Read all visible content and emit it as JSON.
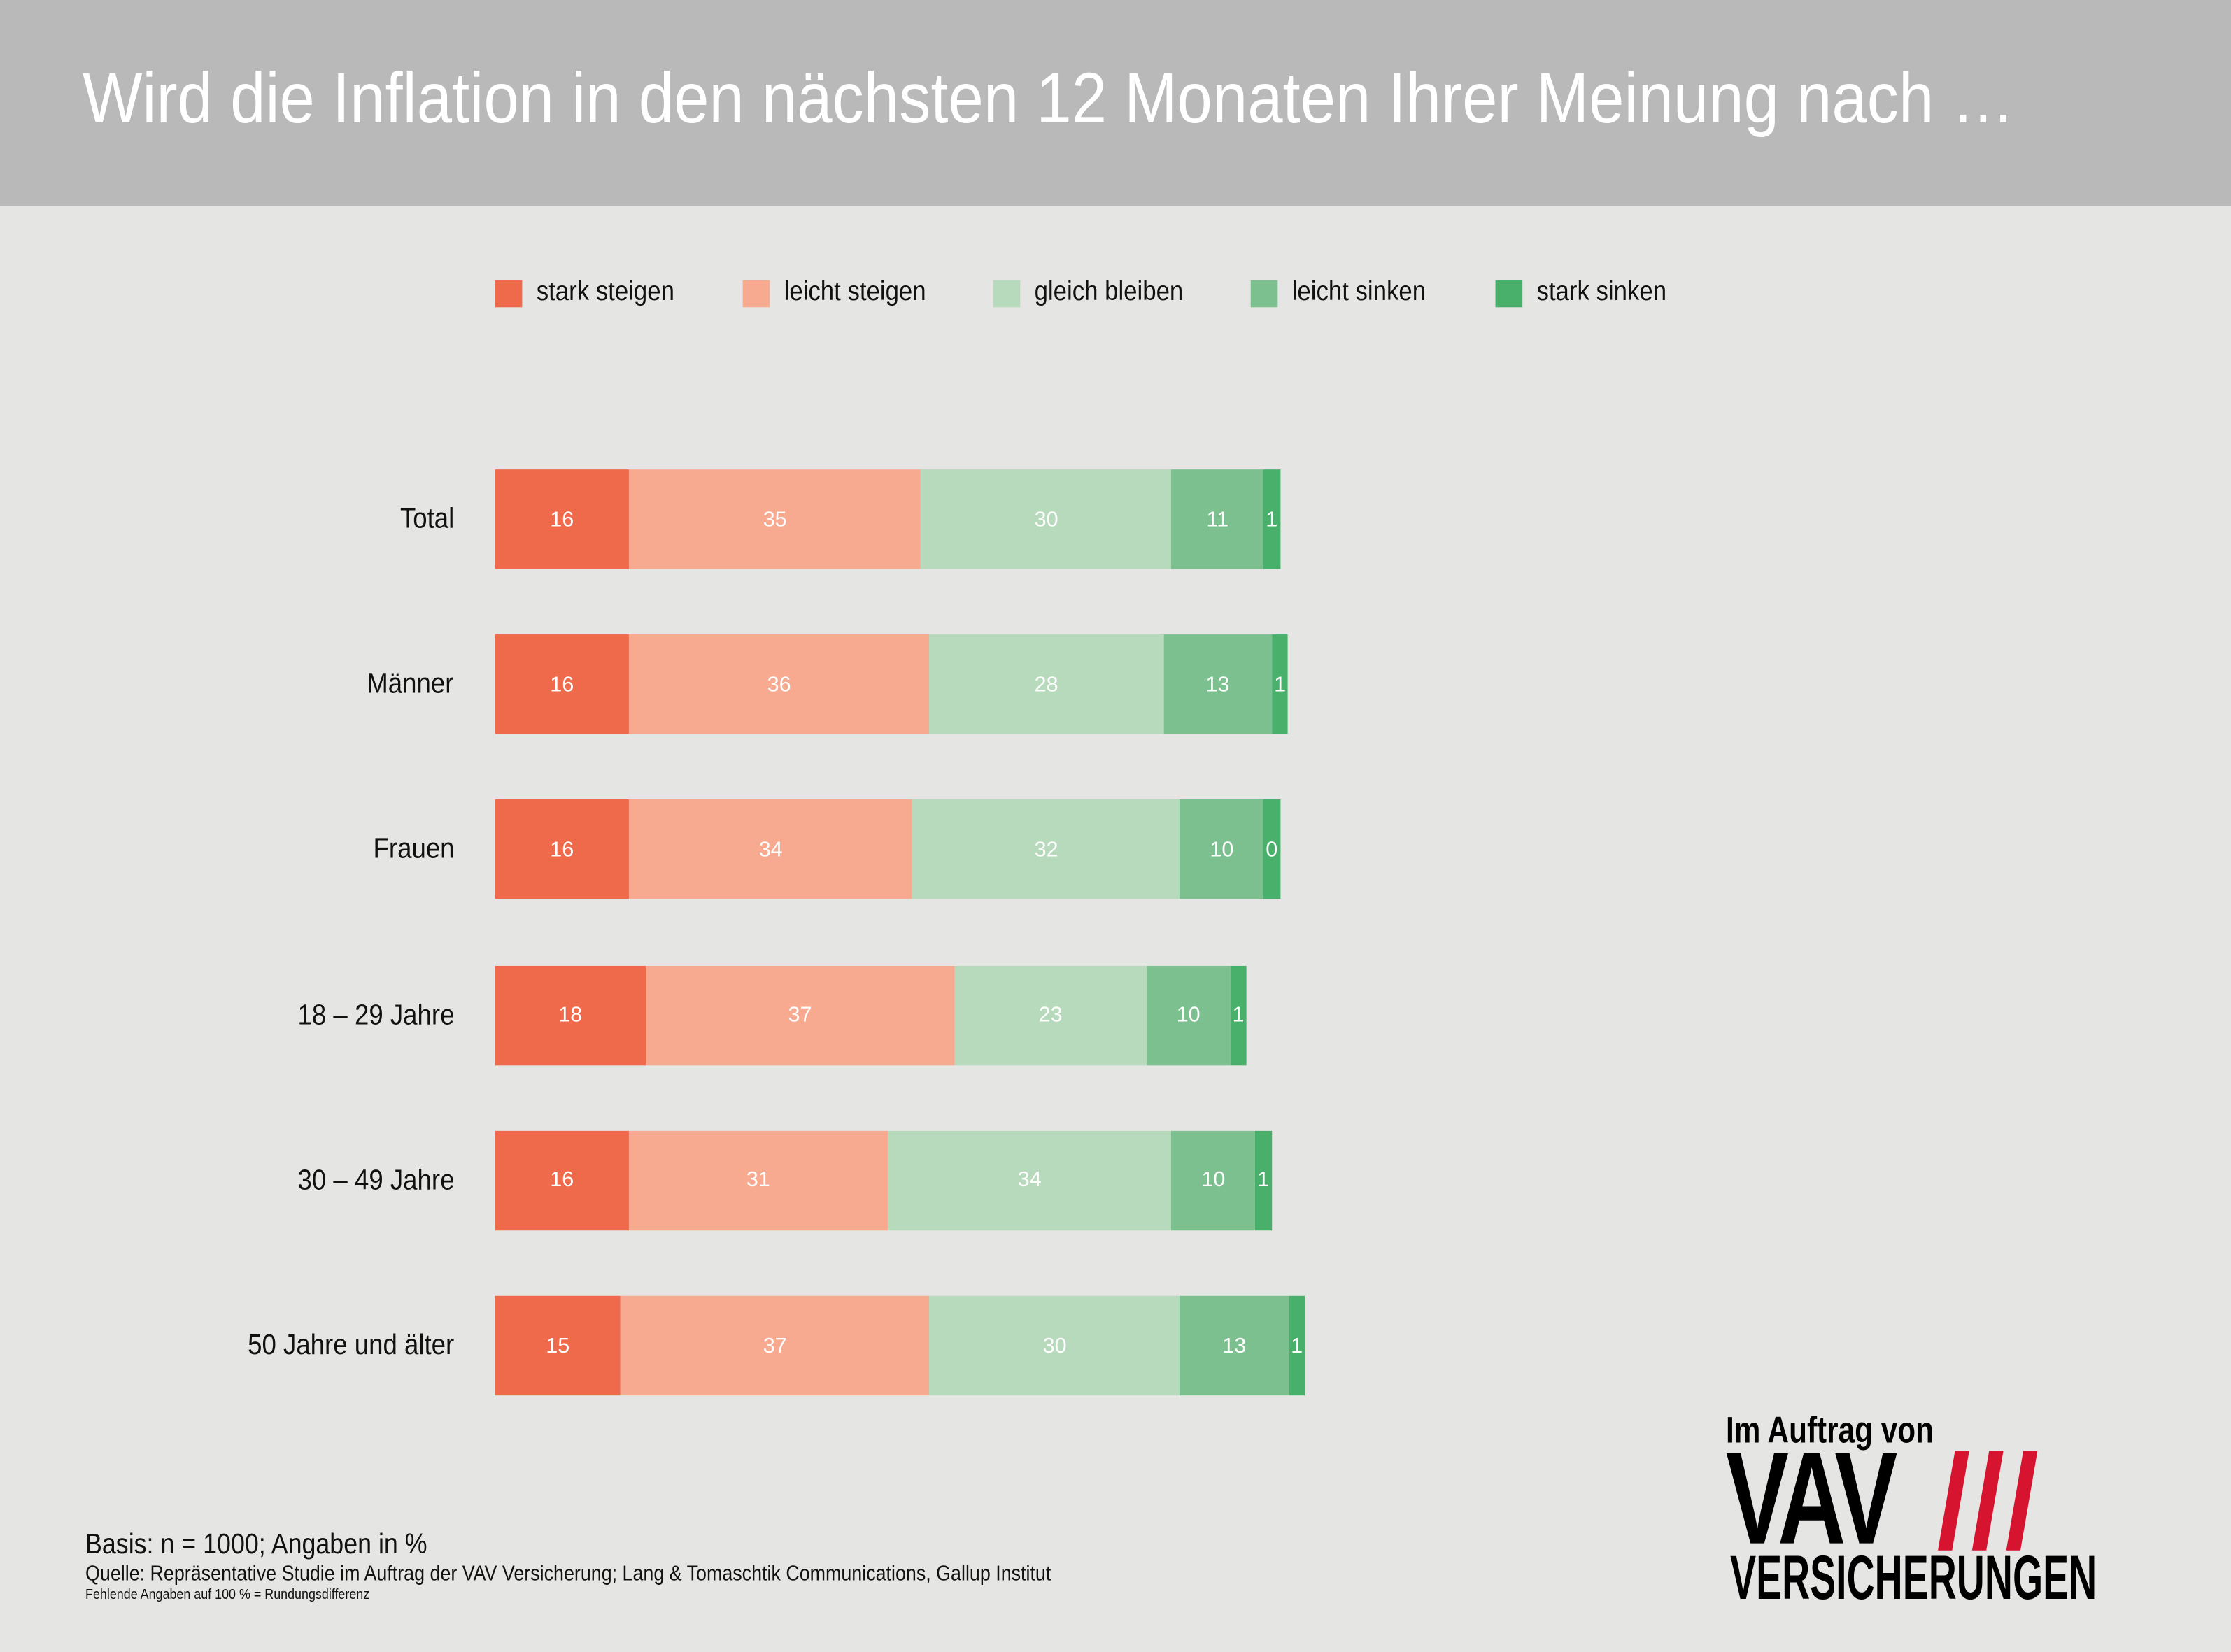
{
  "header": {
    "title": "Wird die Inflation in den nächsten 12 Monaten Ihrer Meinung nach …"
  },
  "chart_data": {
    "type": "bar",
    "orientation": "horizontal-stacked",
    "title": "Wird die Inflation in den nächsten 12 Monaten Ihrer Meinung nach …",
    "unit": "%",
    "legend_position": "top",
    "categories": [
      "Total",
      "Männer",
      "Frauen",
      "18 – 29 Jahre",
      "30 – 49 Jahre",
      "50 Jahre und älter"
    ],
    "series": [
      {
        "name": "stark steigen",
        "color": "#ef6a4b",
        "values": [
          16,
          16,
          16,
          18,
          16,
          15
        ]
      },
      {
        "name": "leicht steigen",
        "color": "#f7aa90",
        "values": [
          35,
          36,
          34,
          37,
          31,
          37
        ]
      },
      {
        "name": "gleich bleiben",
        "color": "#b7d9bc",
        "values": [
          30,
          28,
          32,
          23,
          34,
          30
        ]
      },
      {
        "name": "leicht sinken",
        "color": "#7dc08f",
        "values": [
          11,
          13,
          10,
          10,
          10,
          13
        ]
      },
      {
        "name": "stark sinken",
        "color": "#48b06b",
        "values": [
          1,
          1,
          0,
          1,
          1,
          1
        ]
      }
    ]
  },
  "footer": {
    "basis": "Basis: n = 1000; Angaben in %",
    "source": "Quelle: Repräsentative Studie im Auftrag der VAV Versicherung; Lang & Tomaschtik Communications, Gallup Institut",
    "note": "Fehlende Angaben auf 100 % = Rundungsdifferenz"
  },
  "logo": {
    "intro": "Im Auftrag von",
    "brand": "VAV",
    "sub": "VERSICHERUNGEN",
    "stripe_color": "#d7142f"
  }
}
